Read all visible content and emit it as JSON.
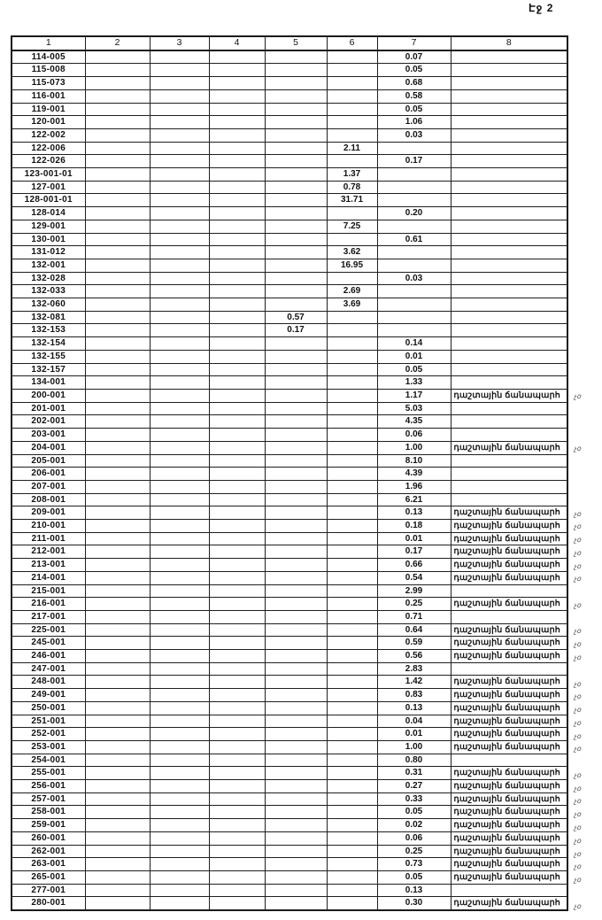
{
  "page_label": "Էջ 2",
  "table": {
    "headers": [
      "1",
      "2",
      "3",
      "4",
      "5",
      "6",
      "7",
      "8"
    ],
    "rows": [
      {
        "code": "114-005",
        "c5": "",
        "c6": "",
        "c7": "0.07",
        "note": "",
        "margin": ""
      },
      {
        "code": "115-008",
        "c5": "",
        "c6": "",
        "c7": "0.05",
        "note": "",
        "margin": ""
      },
      {
        "code": "115-073",
        "c5": "",
        "c6": "",
        "c7": "0.68",
        "note": "",
        "margin": ""
      },
      {
        "code": "116-001",
        "c5": "",
        "c6": "",
        "c7": "0.58",
        "note": "",
        "margin": ""
      },
      {
        "code": "119-001",
        "c5": "",
        "c6": "",
        "c7": "0.05",
        "note": "",
        "margin": ""
      },
      {
        "code": "120-001",
        "c5": "",
        "c6": "",
        "c7": "1.06",
        "note": "",
        "margin": ""
      },
      {
        "code": "122-002",
        "c5": "",
        "c6": "",
        "c7": "0.03",
        "note": "",
        "margin": ""
      },
      {
        "code": "122-006",
        "c5": "",
        "c6": "2.11",
        "c7": "",
        "note": "",
        "margin": ""
      },
      {
        "code": "122-026",
        "c5": "",
        "c6": "",
        "c7": "0.17",
        "note": "",
        "margin": ""
      },
      {
        "code": "123-001-01",
        "c5": "",
        "c6": "1.37",
        "c7": "",
        "note": "",
        "margin": ""
      },
      {
        "code": "127-001",
        "c5": "",
        "c6": "0.78",
        "c7": "",
        "note": "",
        "margin": ""
      },
      {
        "code": "128-001-01",
        "c5": "",
        "c6": "31.71",
        "c7": "",
        "note": "",
        "margin": ""
      },
      {
        "code": "128-014",
        "c5": "",
        "c6": "",
        "c7": "0.20",
        "note": "",
        "margin": ""
      },
      {
        "code": "129-001",
        "c5": "",
        "c6": "7.25",
        "c7": "",
        "note": "",
        "margin": ""
      },
      {
        "code": "130-001",
        "c5": "",
        "c6": "",
        "c7": "0.61",
        "note": "",
        "margin": ""
      },
      {
        "code": "131-012",
        "c5": "",
        "c6": "3.62",
        "c7": "",
        "note": "",
        "margin": ""
      },
      {
        "code": "132-001",
        "c5": "",
        "c6": "16.95",
        "c7": "",
        "note": "",
        "margin": ""
      },
      {
        "code": "132-028",
        "c5": "",
        "c6": "",
        "c7": "0.03",
        "note": "",
        "margin": ""
      },
      {
        "code": "132-033",
        "c5": "",
        "c6": "2.69",
        "c7": "",
        "note": "",
        "margin": ""
      },
      {
        "code": "132-060",
        "c5": "",
        "c6": "3.69",
        "c7": "",
        "note": "",
        "margin": ""
      },
      {
        "code": "132-081",
        "c5": "0.57",
        "c6": "",
        "c7": "",
        "note": "",
        "margin": ""
      },
      {
        "code": "132-153",
        "c5": "0.17",
        "c6": "",
        "c7": "",
        "note": "",
        "margin": ""
      },
      {
        "code": "132-154",
        "c5": "",
        "c6": "",
        "c7": "0.14",
        "note": "",
        "margin": ""
      },
      {
        "code": "132-155",
        "c5": "",
        "c6": "",
        "c7": "0.01",
        "note": "",
        "margin": ""
      },
      {
        "code": "132-157",
        "c5": "",
        "c6": "",
        "c7": "0.05",
        "note": "",
        "margin": ""
      },
      {
        "code": "134-001",
        "c5": "",
        "c6": "",
        "c7": "1.33",
        "note": "",
        "margin": ""
      },
      {
        "code": "200-001",
        "c5": "",
        "c6": "",
        "c7": "1.17",
        "note": "դաշտային ճանապարհ",
        "margin": "չօ"
      },
      {
        "code": "201-001",
        "c5": "",
        "c6": "",
        "c7": "5.03",
        "note": "",
        "margin": ""
      },
      {
        "code": "202-001",
        "c5": "",
        "c6": "",
        "c7": "4.35",
        "note": "",
        "margin": ""
      },
      {
        "code": "203-001",
        "c5": "",
        "c6": "",
        "c7": "0.06",
        "note": "",
        "margin": ""
      },
      {
        "code": "204-001",
        "c5": "",
        "c6": "",
        "c7": "1.00",
        "note": "դաշտային ճանապարհ",
        "margin": "չօ"
      },
      {
        "code": "205-001",
        "c5": "",
        "c6": "",
        "c7": "8.10",
        "note": "",
        "margin": ""
      },
      {
        "code": "206-001",
        "c5": "",
        "c6": "",
        "c7": "4.39",
        "note": "",
        "margin": ""
      },
      {
        "code": "207-001",
        "c5": "",
        "c6": "",
        "c7": "1.96",
        "note": "",
        "margin": ""
      },
      {
        "code": "208-001",
        "c5": "",
        "c6": "",
        "c7": "6.21",
        "note": "",
        "margin": ""
      },
      {
        "code": "209-001",
        "c5": "",
        "c6": "",
        "c7": "0.13",
        "note": "դաշտային ճանապարհ",
        "margin": "չօ"
      },
      {
        "code": "210-001",
        "c5": "",
        "c6": "",
        "c7": "0.18",
        "note": "դաշտային ճանապարհ",
        "margin": "չօ"
      },
      {
        "code": "211-001",
        "c5": "",
        "c6": "",
        "c7": "0.01",
        "note": "դաշտային ճանապարհ",
        "margin": "չօ"
      },
      {
        "code": "212-001",
        "c5": "",
        "c6": "",
        "c7": "0.17",
        "note": "դաշտային ճանապարհ",
        "margin": "չօ"
      },
      {
        "code": "213-001",
        "c5": "",
        "c6": "",
        "c7": "0.66",
        "note": "դաշտային ճանապարհ",
        "margin": "չօ"
      },
      {
        "code": "214-001",
        "c5": "",
        "c6": "",
        "c7": "0.54",
        "note": "դաշտային ճանապարհ",
        "margin": "չօ"
      },
      {
        "code": "215-001",
        "c5": "",
        "c6": "",
        "c7": "2.99",
        "note": "",
        "margin": ""
      },
      {
        "code": "216-001",
        "c5": "",
        "c6": "",
        "c7": "0.25",
        "note": "դաշտային ճանապարհ",
        "margin": "չօ"
      },
      {
        "code": "217-001",
        "c5": "",
        "c6": "",
        "c7": "0.71",
        "note": "",
        "margin": ""
      },
      {
        "code": "225-001",
        "c5": "",
        "c6": "",
        "c7": "0.64",
        "note": "դաշտային ճանապարհ",
        "margin": "չօ"
      },
      {
        "code": "245-001",
        "c5": "",
        "c6": "",
        "c7": "0.59",
        "note": "դաշտային ճանապարհ",
        "margin": "չօ"
      },
      {
        "code": "246-001",
        "c5": "",
        "c6": "",
        "c7": "0.56",
        "note": "դաշտային ճանապարհ",
        "margin": "չօ"
      },
      {
        "code": "247-001",
        "c5": "",
        "c6": "",
        "c7": "2.83",
        "note": "",
        "margin": ""
      },
      {
        "code": "248-001",
        "c5": "",
        "c6": "",
        "c7": "1.42",
        "note": "դաշտային ճանապարհ",
        "margin": "չօ"
      },
      {
        "code": "249-001",
        "c5": "",
        "c6": "",
        "c7": "0.83",
        "note": "դաշտային ճանապարհ",
        "margin": "չօ"
      },
      {
        "code": "250-001",
        "c5": "",
        "c6": "",
        "c7": "0.13",
        "note": "դաշտային ճանապարհ",
        "margin": "չօ"
      },
      {
        "code": "251-001",
        "c5": "",
        "c6": "",
        "c7": "0.04",
        "note": "դաշտային ճանապարհ",
        "margin": "չօ"
      },
      {
        "code": "252-001",
        "c5": "",
        "c6": "",
        "c7": "0.01",
        "note": "դաշտային ճանապարհ",
        "margin": "չօ"
      },
      {
        "code": "253-001",
        "c5": "",
        "c6": "",
        "c7": "1.00",
        "note": "դաշտային ճանապարհ",
        "margin": "չօ"
      },
      {
        "code": "254-001",
        "c5": "",
        "c6": "",
        "c7": "0.80",
        "note": "",
        "margin": ""
      },
      {
        "code": "255-001",
        "c5": "",
        "c6": "",
        "c7": "0.31",
        "note": "դաշտային ճանապարհ",
        "margin": "չօ"
      },
      {
        "code": "256-001",
        "c5": "",
        "c6": "",
        "c7": "0.27",
        "note": "դաշտային ճանապարհ",
        "margin": "չօ"
      },
      {
        "code": "257-001",
        "c5": "",
        "c6": "",
        "c7": "0.33",
        "note": "դաշտային ճանապարհ",
        "margin": "չօ"
      },
      {
        "code": "258-001",
        "c5": "",
        "c6": "",
        "c7": "0.05",
        "note": "դաշտային ճանապարհ",
        "margin": "չօ"
      },
      {
        "code": "259-001",
        "c5": "",
        "c6": "",
        "c7": "0.02",
        "note": "դաշտային ճանապարհ",
        "margin": "չօ"
      },
      {
        "code": "260-001",
        "c5": "",
        "c6": "",
        "c7": "0.06",
        "note": "դաշտային ճանապարհ",
        "margin": "չօ"
      },
      {
        "code": "262-001",
        "c5": "",
        "c6": "",
        "c7": "0.25",
        "note": "դաշտային ճանապարհ",
        "margin": "չօ"
      },
      {
        "code": "263-001",
        "c5": "",
        "c6": "",
        "c7": "0.73",
        "note": "դաշտային ճանապարհ",
        "margin": "չօ"
      },
      {
        "code": "265-001",
        "c5": "",
        "c6": "",
        "c7": "0.05",
        "note": "դաշտային ճանապարհ",
        "margin": "չօ"
      },
      {
        "code": "277-001",
        "c5": "",
        "c6": "",
        "c7": "0.13",
        "note": "",
        "margin": ""
      },
      {
        "code": "280-001",
        "c5": "",
        "c6": "",
        "c7": "0.30",
        "note": "դաշտային ճանապարհ",
        "margin": "չօ"
      }
    ]
  }
}
